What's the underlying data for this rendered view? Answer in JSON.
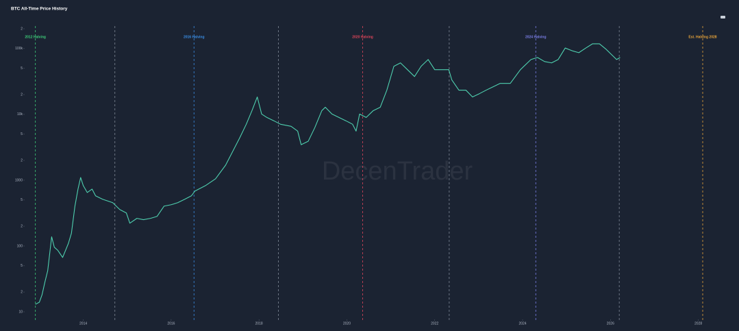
{
  "chart_data": {
    "type": "line",
    "title": "BTC All-Time Price History",
    "watermark": "DecenTrader",
    "log_y": true,
    "color": "#4fd1b0",
    "xlim": [
      2012.65,
      2028.63
    ],
    "xticks": [
      2014,
      2016,
      2018,
      2020,
      2022,
      2024,
      2026,
      2028
    ],
    "ylim": [
      7.5,
      220000
    ],
    "yticks": [
      10,
      {
        "value": 20,
        "label": "2"
      },
      {
        "value": 50,
        "label": "5"
      },
      100,
      {
        "value": 200,
        "label": "2"
      },
      {
        "value": 500,
        "label": "5"
      },
      1000,
      {
        "value": 2000,
        "label": "2"
      },
      {
        "value": 5000,
        "label": "5"
      },
      {
        "value": 10000,
        "label": "10k"
      },
      {
        "value": 20000,
        "label": "2"
      },
      {
        "value": 50000,
        "label": "5"
      },
      {
        "value": 100000,
        "label": "100k"
      },
      {
        "value": 200000,
        "label": "2"
      }
    ],
    "halvings": [
      {
        "x": 2012.91,
        "label": "2012 Halving",
        "color": "#3ecf7a"
      },
      {
        "x": 2016.52,
        "label": "2016 Halving",
        "color": "#3a8ee6"
      },
      {
        "x": 2020.36,
        "label": "2020 Halving",
        "color": "#e0455a"
      },
      {
        "x": 2024.3,
        "label": "2024 Halving",
        "color": "#7b7fe8"
      },
      {
        "x": 2028.1,
        "label": "Est. Halving 2028",
        "color": "#e8a43a"
      }
    ],
    "markers": {
      "color": "#8e97a6",
      "x": [
        2014.72,
        2018.44,
        2022.33,
        2026.2
      ]
    },
    "x": [
      2012.91,
      2013.0,
      2013.06,
      2013.13,
      2013.19,
      2013.28,
      2013.34,
      2013.42,
      2013.53,
      2013.66,
      2013.73,
      2013.81,
      2013.88,
      2013.94,
      2014.0,
      2014.09,
      2014.2,
      2014.28,
      2014.44,
      2014.67,
      2014.83,
      2014.98,
      2015.06,
      2015.22,
      2015.37,
      2015.53,
      2015.68,
      2015.84,
      2016.0,
      2016.15,
      2016.31,
      2016.46,
      2016.54,
      2016.78,
      2017.01,
      2017.24,
      2017.4,
      2017.56,
      2017.71,
      2017.84,
      2017.96,
      2018.06,
      2018.18,
      2018.34,
      2018.49,
      2018.73,
      2018.88,
      2018.96,
      2019.12,
      2019.27,
      2019.43,
      2019.51,
      2019.66,
      2019.82,
      2019.98,
      2020.13,
      2020.21,
      2020.29,
      2020.44,
      2020.6,
      2020.76,
      2020.91,
      2021.07,
      2021.22,
      2021.38,
      2021.54,
      2021.69,
      2021.85,
      2022.0,
      2022.16,
      2022.32,
      2022.39,
      2022.55,
      2022.71,
      2022.86,
      2023.02,
      2023.17,
      2023.33,
      2023.49,
      2023.72,
      2023.95,
      2024.19,
      2024.34,
      2024.5,
      2024.66,
      2024.81,
      2024.97,
      2025.12,
      2025.28,
      2025.44,
      2025.59,
      2025.75,
      2025.9,
      2026.06,
      2026.14,
      2026.22
    ],
    "values": [
      13,
      14,
      18,
      29,
      42,
      138,
      96,
      86,
      67,
      109,
      156,
      404,
      733,
      1099,
      826,
      650,
      733,
      578,
      513,
      455,
      358,
      318,
      222,
      263,
      251,
      263,
      282,
      404,
      424,
      455,
      513,
      578,
      682,
      826,
      1049,
      1692,
      2723,
      4385,
      7079,
      11400,
      18370,
      10120,
      8980,
      7980,
      7079,
      6590,
      5570,
      3460,
      3900,
      6280,
      11400,
      12850,
      10120,
      8980,
      7980,
      7079,
      5570,
      10120,
      8980,
      11400,
      12850,
      23340,
      53800,
      60600,
      47800,
      37600,
      53800,
      68200,
      47800,
      47800,
      47800,
      33300,
      23340,
      23340,
      18370,
      20700,
      23340,
      26300,
      29600,
      29600,
      47800,
      68200,
      73300,
      63500,
      60600,
      68200,
      102000,
      93000,
      86600,
      102000,
      118000,
      118000,
      97700,
      76900,
      68200,
      73300
    ]
  }
}
